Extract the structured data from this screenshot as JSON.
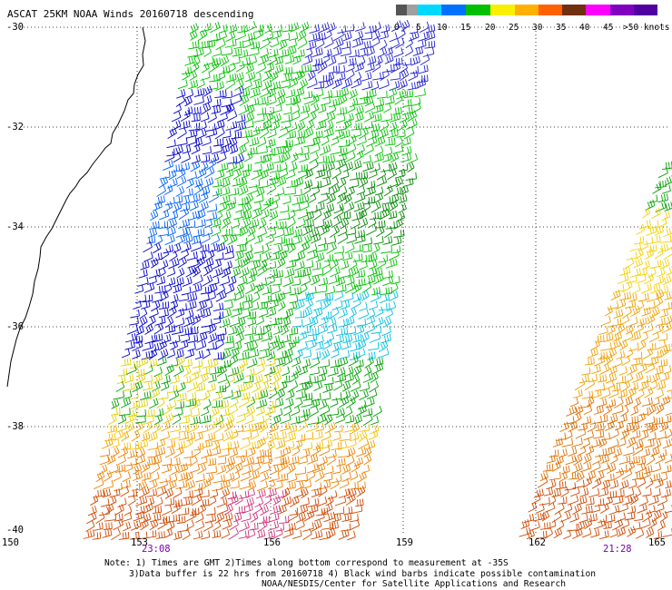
{
  "title": "ASCAT 25KM NOAA Winds 20160718 descending",
  "legend": {
    "labels": [
      "0",
      "5",
      "10",
      "15",
      "20",
      "25",
      "30",
      "35",
      "40",
      "45",
      ">50 knots"
    ],
    "colors": [
      "#555555",
      "#a0a0a0",
      "#00d8ff",
      "#0070ff",
      "#00c000",
      "#f8f000",
      "#ffb000",
      "#ff6000",
      "#703010",
      "#ff00ff",
      "#8000c0",
      "#5000a0"
    ]
  },
  "axes": {
    "lat_labels": [
      "-30",
      "-32",
      "-34",
      "-36",
      "-38",
      "-40"
    ],
    "lon_labels": [
      "150",
      "153",
      "156",
      "159",
      "162",
      "165"
    ]
  },
  "times": [
    "23:08",
    "21:28"
  ],
  "notes": {
    "line1": "Note: 1) Times are GMT 2)Times along bottom correspond to measurement at -35S",
    "line2": "3)Data buffer is 22 hrs from 20160718 4) Black wind barbs indicate possible contamination",
    "line3": "NOAA/NESDIS/Center for Satellite Applications and Research"
  }
}
